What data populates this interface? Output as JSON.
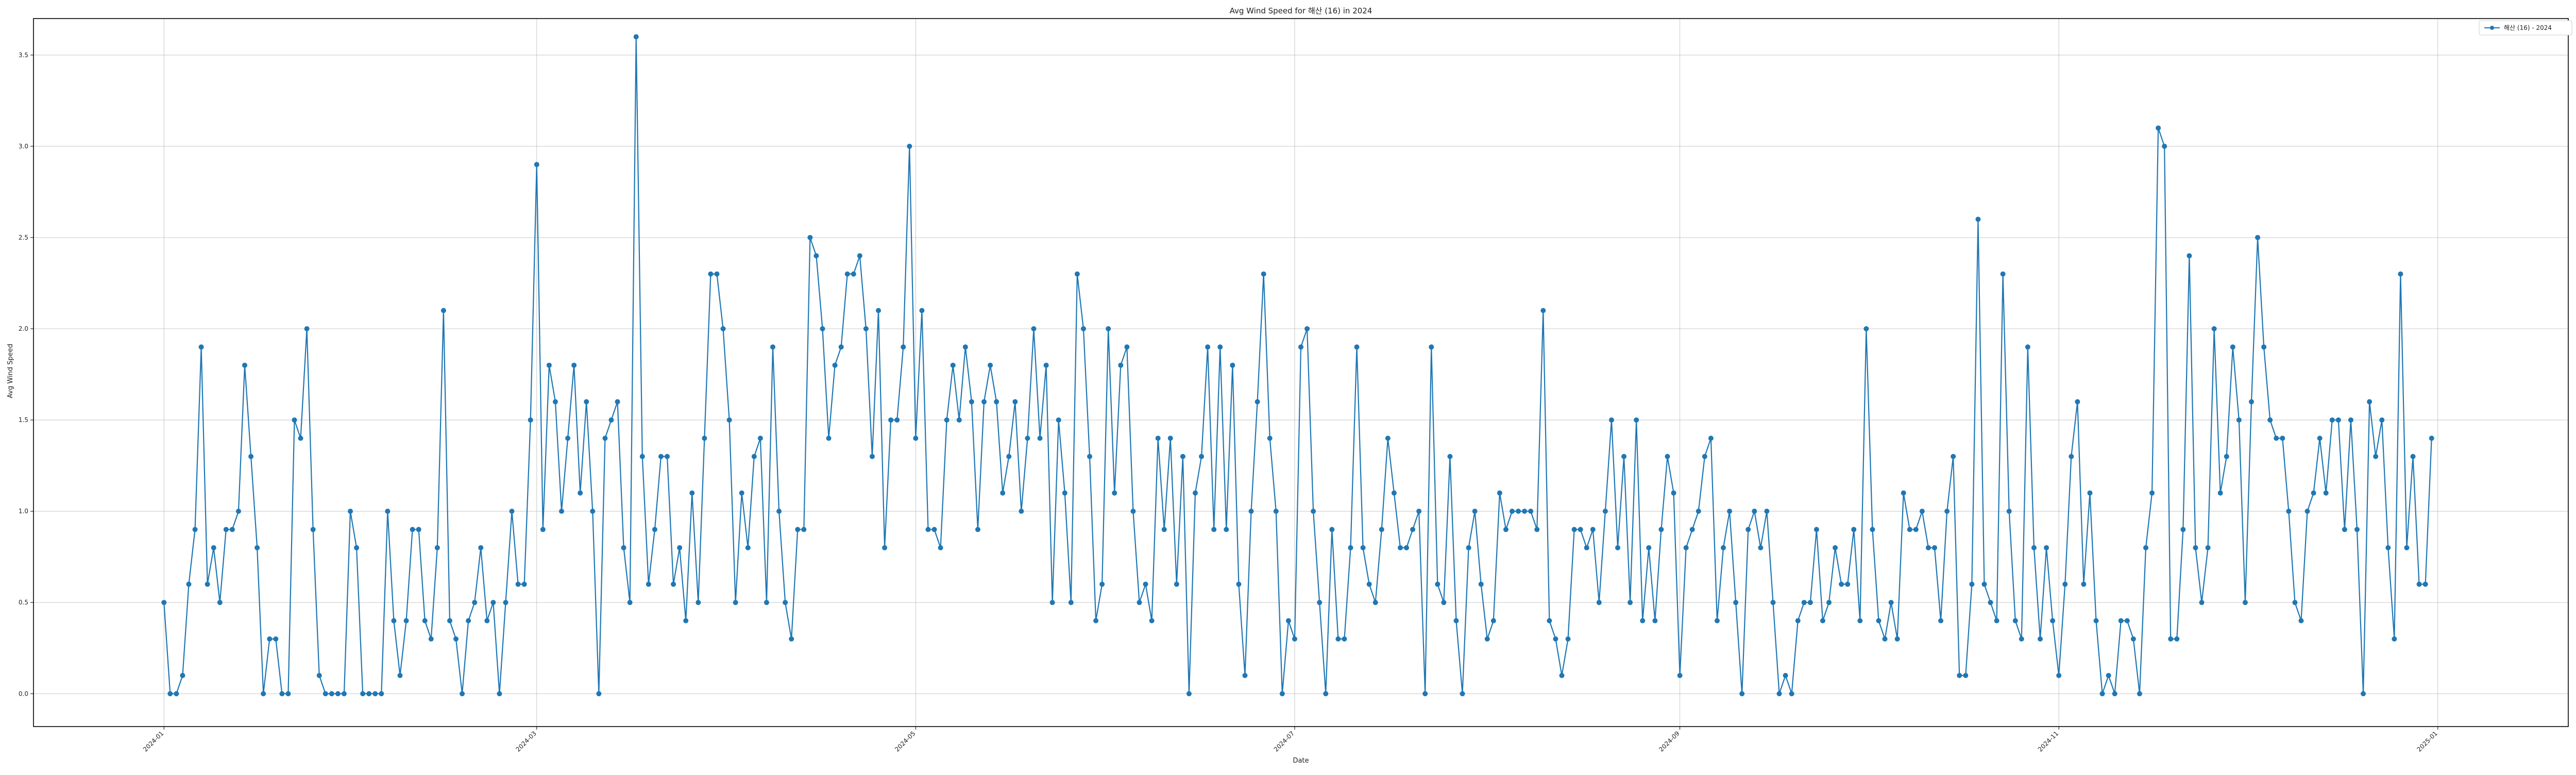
{
  "chart_data": {
    "type": "line",
    "title": "Avg Wind Speed for 해산 (16) in 2024",
    "xlabel": "Date",
    "ylabel": "Avg Wind Speed",
    "x_range": [
      "2023-12-10",
      "2025-01-22"
    ],
    "xlim": [
      -21,
      387
    ],
    "ylim": [
      -0.18,
      3.7
    ],
    "grid": true,
    "legend_position": "top-right",
    "line_color": "#1f77b4",
    "x_ticks": [
      {
        "day": 0,
        "label": "2024-01"
      },
      {
        "day": 60,
        "label": "2024-03"
      },
      {
        "day": 121,
        "label": "2024-05"
      },
      {
        "day": 182,
        "label": "2024-07"
      },
      {
        "day": 244,
        "label": "2024-09"
      },
      {
        "day": 305,
        "label": "2024-11"
      },
      {
        "day": 366,
        "label": "2025-01"
      }
    ],
    "y_ticks": [
      0.0,
      0.5,
      1.0,
      1.5,
      2.0,
      2.5,
      3.0,
      3.5
    ],
    "series": [
      {
        "name": "해산 (16) - 2024",
        "start_date": "2024-01-01",
        "values": [
          0.5,
          0.0,
          0.0,
          0.1,
          0.6,
          0.9,
          1.9,
          0.6,
          0.8,
          0.5,
          0.9,
          0.9,
          1.0,
          1.8,
          1.3,
          0.8,
          0.0,
          0.3,
          0.3,
          0.0,
          0.0,
          1.5,
          1.4,
          2.0,
          0.9,
          0.1,
          0.0,
          0.0,
          0.0,
          0.0,
          1.0,
          0.8,
          0.0,
          0.0,
          0.0,
          0.0,
          1.0,
          0.4,
          0.1,
          0.4,
          0.9,
          0.9,
          0.4,
          0.3,
          0.8,
          2.1,
          0.4,
          0.3,
          0.0,
          0.4,
          0.5,
          0.8,
          0.4,
          0.5,
          0.0,
          0.5,
          1.0,
          0.6,
          0.6,
          1.5,
          2.9,
          0.9,
          1.8,
          1.6,
          1.0,
          1.4,
          1.8,
          1.1,
          1.6,
          1.0,
          0.0,
          1.4,
          1.5,
          1.6,
          0.8,
          0.5,
          3.6,
          1.3,
          0.6,
          0.9,
          1.3,
          1.3,
          0.6,
          0.8,
          0.4,
          1.1,
          0.5,
          1.4,
          2.3,
          2.3,
          2.0,
          1.5,
          0.5,
          1.1,
          0.8,
          1.3,
          1.4,
          0.5,
          1.9,
          1.0,
          0.5,
          0.3,
          0.9,
          0.9,
          2.5,
          2.4,
          2.0,
          1.4,
          1.8,
          1.9,
          2.3,
          2.3,
          2.4,
          2.0,
          1.3,
          2.1,
          0.8,
          1.5,
          1.5,
          1.9,
          3.0,
          1.4,
          2.1,
          0.9,
          0.9,
          0.8,
          1.5,
          1.8,
          1.5,
          1.9,
          1.6,
          0.9,
          1.6,
          1.8,
          1.6,
          1.1,
          1.3,
          1.6,
          1.0,
          1.4,
          2.0,
          1.4,
          1.8,
          0.5,
          1.5,
          1.1,
          0.5,
          2.3,
          2.0,
          1.3,
          0.4,
          0.6,
          2.0,
          1.1,
          1.8,
          1.9,
          1.0,
          0.5,
          0.6,
          0.4,
          1.4,
          0.9,
          1.4,
          0.6,
          1.3,
          0.0,
          1.1,
          1.3,
          1.9,
          0.9,
          1.9,
          0.9,
          1.8,
          0.6,
          0.1,
          1.0,
          1.6,
          2.3,
          1.4,
          1.0,
          0.0,
          0.4,
          0.3,
          1.9,
          2.0,
          1.0,
          0.5,
          0.0,
          0.9,
          0.3,
          0.3,
          0.8,
          1.9,
          0.8,
          0.6,
          0.5,
          0.9,
          1.4,
          1.1,
          0.8,
          0.8,
          0.9,
          1.0,
          0.0,
          1.9,
          0.6,
          0.5,
          1.3,
          0.4,
          0.0,
          0.8,
          1.0,
          0.6,
          0.3,
          0.4,
          1.1,
          0.9,
          1.0,
          1.0,
          1.0,
          1.0,
          0.9,
          2.1,
          0.4,
          0.3,
          0.1,
          0.3,
          0.9,
          0.9,
          0.8,
          0.9,
          0.5,
          1.0,
          1.5,
          0.8,
          1.3,
          0.5,
          1.5,
          0.4,
          0.8,
          0.4,
          0.9,
          1.3,
          1.1,
          0.1,
          0.8,
          0.9,
          1.0,
          1.3,
          1.4,
          0.4,
          0.8,
          1.0,
          0.5,
          0.0,
          0.9,
          1.0,
          0.8,
          1.0,
          0.5,
          0.0,
          0.1,
          0.0,
          0.4,
          0.5,
          0.5,
          0.9,
          0.4,
          0.5,
          0.8,
          0.6,
          0.6,
          0.9,
          0.4,
          2.0,
          0.9,
          0.4,
          0.3,
          0.5,
          0.3,
          1.1,
          0.9,
          0.9,
          1.0,
          0.8,
          0.8,
          0.4,
          1.0,
          1.3,
          0.1,
          0.1,
          0.6,
          2.6,
          0.6,
          0.5,
          0.4,
          2.3,
          1.0,
          0.4,
          0.3,
          1.9,
          0.8,
          0.3,
          0.8,
          0.4,
          0.1,
          0.6,
          1.3,
          1.6,
          0.6,
          1.1,
          0.4,
          0.0,
          0.1,
          0.0,
          0.4,
          0.4,
          0.3,
          0.0,
          0.8,
          1.1,
          3.1,
          3.0,
          0.3,
          0.3,
          0.9,
          2.4,
          0.8,
          0.5,
          0.8,
          2.0,
          1.1,
          1.3,
          1.9,
          1.5,
          0.5,
          1.6,
          2.5,
          1.9,
          1.5,
          1.4,
          1.4,
          1.0,
          0.5,
          0.4,
          1.0,
          1.1,
          1.4,
          1.1,
          1.5,
          1.5,
          0.9,
          1.5,
          0.9,
          0.0,
          1.6,
          1.3,
          1.5,
          0.8,
          0.3,
          2.3,
          0.8,
          1.3,
          0.6,
          0.6,
          1.4
        ]
      }
    ]
  }
}
